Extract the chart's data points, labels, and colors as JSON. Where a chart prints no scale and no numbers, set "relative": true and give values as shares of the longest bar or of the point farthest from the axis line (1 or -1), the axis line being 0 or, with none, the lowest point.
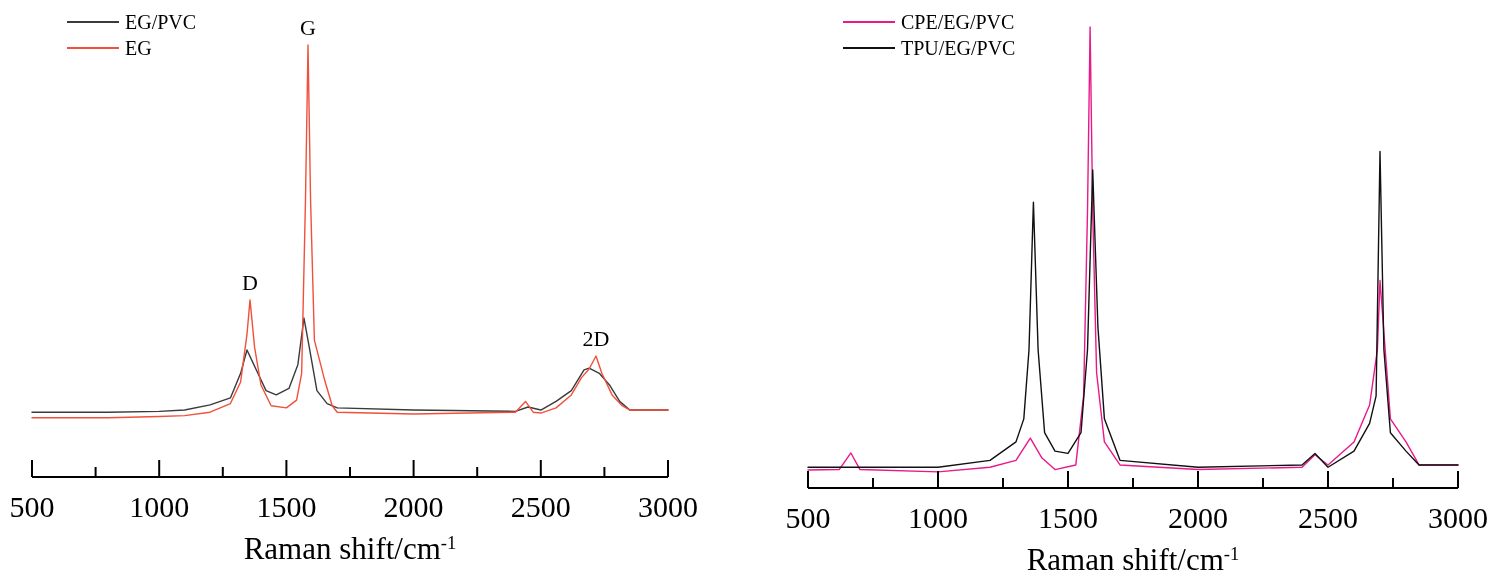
{
  "chart_data": [
    {
      "type": "line",
      "relative": true,
      "xlabel": "Raman shift/cm$^{-1}$",
      "xlim": [
        500,
        3000
      ],
      "xticks": [
        500,
        {
          "value": 750,
          "label": null
        },
        1000,
        {
          "value": 1250,
          "label": null
        },
        1500,
        {
          "value": 1750,
          "label": null
        },
        2000,
        {
          "value": 2250,
          "label": null
        },
        2500,
        {
          "value": 2750,
          "label": null
        },
        3000
      ],
      "legend": "top left",
      "grid": false,
      "line_style": "solid",
      "annotations": [
        {
          "text": "D",
          "x": 1357,
          "y": 0.41
        },
        {
          "text": "G",
          "x": 1585,
          "y": 1
        },
        {
          "text": "2D",
          "x": 2717,
          "y": 0.28
        }
      ],
      "series": [
        {
          "name": "EG/PVC",
          "color": "#3a3a3a",
          "x": [
            500,
            800,
            1000,
            1100,
            1200,
            1280,
            1320,
            1345,
            1380,
            1420,
            1460,
            1510,
            1545,
            1569,
            1590,
            1620,
            1660,
            1700,
            2000,
            2400,
            2450,
            2500,
            2560,
            2620,
            2670,
            2690,
            2730,
            2770,
            2810,
            2850,
            3000
          ],
          "values": [
            0.15,
            0.15,
            0.152,
            0.155,
            0.167,
            0.183,
            0.24,
            0.294,
            0.25,
            0.2,
            0.19,
            0.205,
            0.26,
            0.368,
            0.3,
            0.2,
            0.17,
            0.16,
            0.155,
            0.152,
            0.162,
            0.155,
            0.175,
            0.2,
            0.248,
            0.252,
            0.24,
            0.213,
            0.175,
            0.155,
            0.155
          ]
        },
        {
          "name": "EG",
          "color": "#f0503c",
          "x": [
            500,
            800,
            1000,
            1100,
            1200,
            1280,
            1320,
            1345,
            1357,
            1375,
            1400,
            1440,
            1500,
            1540,
            1560,
            1575,
            1585,
            1595,
            1610,
            1630,
            1650,
            1680,
            1700,
            2000,
            2400,
            2440,
            2470,
            2500,
            2560,
            2620,
            2660,
            2690,
            2717,
            2740,
            2780,
            2820,
            2850,
            3000
          ],
          "values": [
            0.137,
            0.137,
            0.14,
            0.142,
            0.15,
            0.17,
            0.22,
            0.33,
            0.41,
            0.3,
            0.213,
            0.165,
            0.16,
            0.178,
            0.24,
            0.641,
            1,
            0.641,
            0.317,
            0.271,
            0.225,
            0.165,
            0.15,
            0.146,
            0.15,
            0.175,
            0.15,
            0.148,
            0.16,
            0.19,
            0.23,
            0.25,
            0.28,
            0.24,
            0.19,
            0.165,
            0.155,
            0.155
          ]
        }
      ]
    },
    {
      "type": "line",
      "relative": true,
      "xlabel": "Raman shift/cm$^{-1}$",
      "xlim": [
        500,
        3000
      ],
      "xticks": [
        500,
        {
          "value": 750,
          "label": null
        },
        1000,
        {
          "value": 1250,
          "label": null
        },
        1500,
        {
          "value": 1750,
          "label": null
        },
        2000,
        {
          "value": 2250,
          "label": null
        },
        2500,
        {
          "value": 2750,
          "label": null
        },
        3000
      ],
      "legend": "top left",
      "grid": false,
      "line_style": "solid",
      "series": [
        {
          "name": "CPE/EG/PVC",
          "color": "#e8198a",
          "x": [
            500,
            620,
            665,
            700,
            1000,
            1200,
            1300,
            1355,
            1400,
            1450,
            1530,
            1560,
            1575,
            1585,
            1595,
            1610,
            1640,
            1700,
            2000,
            2400,
            2450,
            2500,
            2600,
            2660,
            2690,
            2700,
            2720,
            2740,
            2800,
            2850,
            3000
          ],
          "values": [
            0.039,
            0.04,
            0.076,
            0.04,
            0.035,
            0.045,
            0.06,
            0.108,
            0.065,
            0.04,
            0.05,
            0.2,
            0.6,
            1,
            0.6,
            0.25,
            0.1,
            0.05,
            0.04,
            0.045,
            0.072,
            0.05,
            0.1,
            0.18,
            0.3,
            0.45,
            0.3,
            0.15,
            0.1,
            0.05,
            0.05
          ]
        },
        {
          "name": "TPU/EG/PVC",
          "color": "#111111",
          "x": [
            500,
            1000,
            1200,
            1300,
            1330,
            1350,
            1367,
            1385,
            1410,
            1450,
            1500,
            1550,
            1575,
            1595,
            1615,
            1640,
            1700,
            2000,
            2400,
            2450,
            2500,
            2600,
            2660,
            2685,
            2700,
            2715,
            2740,
            2800,
            2850,
            3000
          ],
          "values": [
            0.045,
            0.045,
            0.06,
            0.1,
            0.15,
            0.3,
            0.62,
            0.3,
            0.12,
            0.08,
            0.075,
            0.12,
            0.3,
            0.69,
            0.35,
            0.15,
            0.06,
            0.045,
            0.05,
            0.075,
            0.045,
            0.08,
            0.14,
            0.2,
            0.73,
            0.3,
            0.12,
            0.08,
            0.05,
            0.05
          ]
        }
      ]
    }
  ]
}
